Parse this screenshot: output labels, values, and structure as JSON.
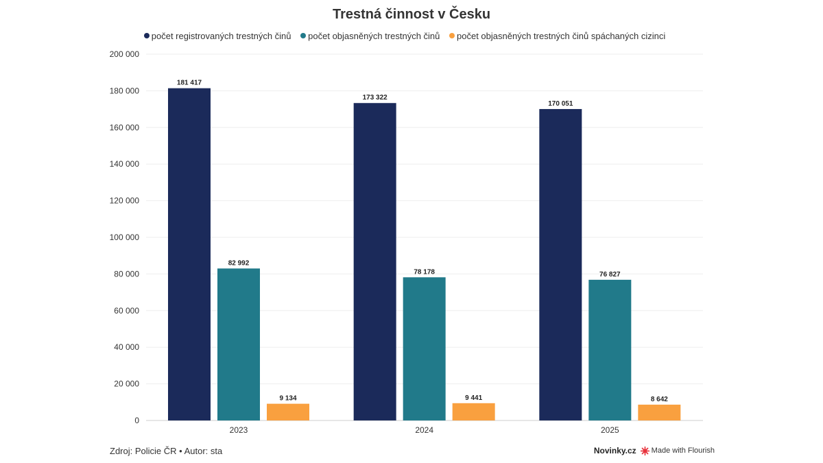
{
  "chart_data": {
    "type": "bar",
    "title": "Trestná činnost v Česku",
    "categories": [
      "2023",
      "2024",
      "2025"
    ],
    "series": [
      {
        "name": "počet registrovaných trestných činů",
        "color": "#1b2a5a",
        "values": [
          181417,
          173322,
          170051
        ],
        "labels": [
          "181 417",
          "173 322",
          "170 051"
        ]
      },
      {
        "name": "počet objasněných trestných činů",
        "color": "#217a8a",
        "values": [
          82992,
          78178,
          76827
        ],
        "labels": [
          "82 992",
          "78 178",
          "76 827"
        ]
      },
      {
        "name": "počet objasněných trestných činů spáchaných cizinci",
        "color": "#f9a03f",
        "values": [
          9134,
          9441,
          8642
        ],
        "labels": [
          "9 134",
          "9 441",
          "8 642"
        ]
      }
    ],
    "ylim": [
      0,
      200000
    ],
    "yticks": [
      0,
      20000,
      40000,
      60000,
      80000,
      100000,
      120000,
      140000,
      160000,
      180000,
      200000
    ],
    "ytick_labels": [
      "0",
      "20 000",
      "40 000",
      "60 000",
      "80 000",
      "100 000",
      "120 000",
      "140 000",
      "160 000",
      "180 000",
      "200 000"
    ],
    "grid": true,
    "legend_position": "top"
  },
  "footer": {
    "source": "Zdroj: Policie ČR • Autor: sta",
    "brand": "Novinky.cz",
    "flourish": "Made with Flourish"
  }
}
